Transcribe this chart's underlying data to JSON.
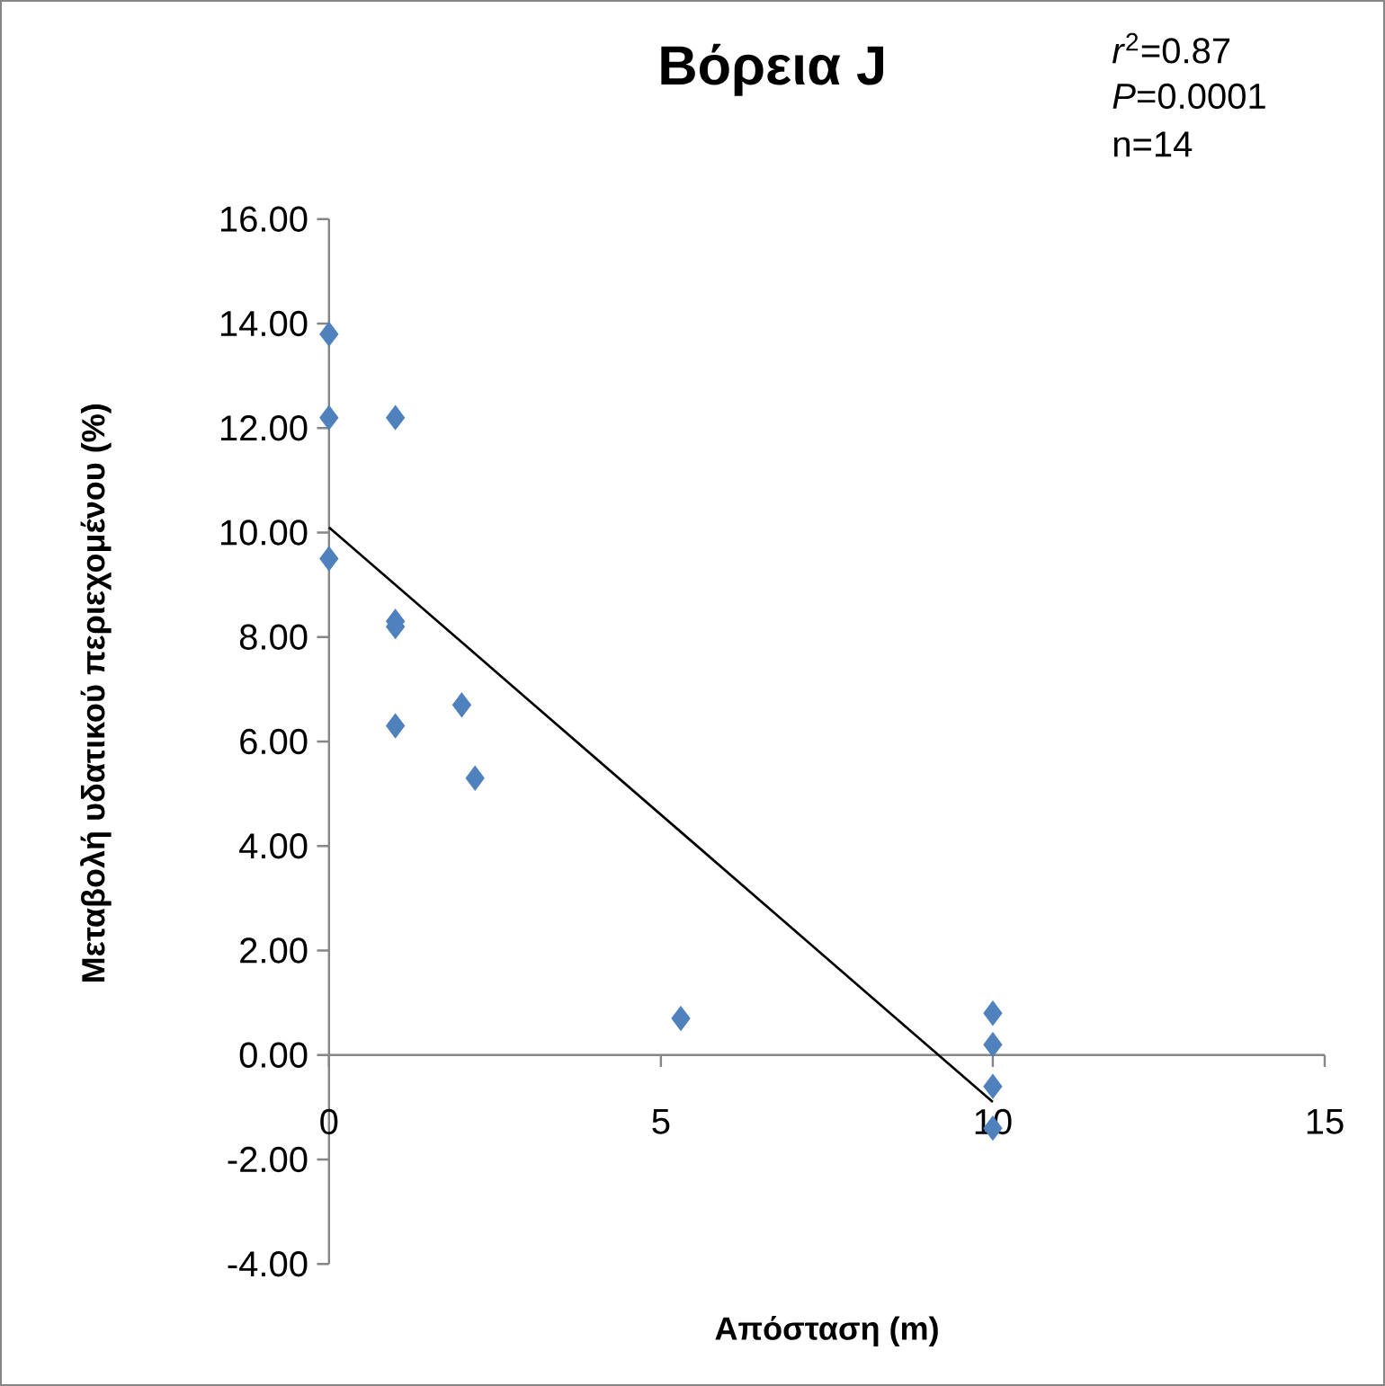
{
  "chart_data": {
    "type": "scatter",
    "title": "Βόρεια J",
    "xlabel": "Απόσταση (m)",
    "ylabel": "Μεταβολή υδατικού περιεχομένου (%)",
    "annotations": [
      "*r*$^{2}$=0.87",
      "*P*=0.0001",
      "n=14"
    ],
    "xlim": [
      0,
      15
    ],
    "xticks": [
      0,
      5,
      10,
      15
    ],
    "ylim": [
      -4,
      16
    ],
    "yticks": [
      {
        "value": -4,
        "label": "-4.00"
      },
      {
        "value": -2,
        "label": "-2.00"
      },
      {
        "value": 0,
        "label": "0.00"
      },
      {
        "value": 2,
        "label": "2.00"
      },
      {
        "value": 4,
        "label": "4.00"
      },
      {
        "value": 6,
        "label": "6.00"
      },
      {
        "value": 8,
        "label": "8.00"
      },
      {
        "value": 10,
        "label": "10.00"
      },
      {
        "value": 12,
        "label": "12.00"
      },
      {
        "value": 14,
        "label": "14.00"
      },
      {
        "value": 16,
        "label": "16.00"
      }
    ],
    "grid": false,
    "series": [
      {
        "marker": "diamond",
        "color": "#4f81bd",
        "x": [
          0,
          0,
          1,
          0,
          1,
          1,
          1,
          2,
          2.2,
          5.3,
          10,
          10,
          10,
          10
        ],
        "values": [
          13.8,
          12.2,
          12.2,
          9.5,
          8.3,
          8.2,
          6.3,
          6.7,
          5.3,
          0.7,
          0.8,
          0.2,
          -0.6,
          -1.4
        ]
      },
      {
        "type": "line",
        "color": "#000000",
        "x": [
          0,
          10
        ],
        "values": [
          10.1,
          -0.9
        ]
      }
    ]
  }
}
